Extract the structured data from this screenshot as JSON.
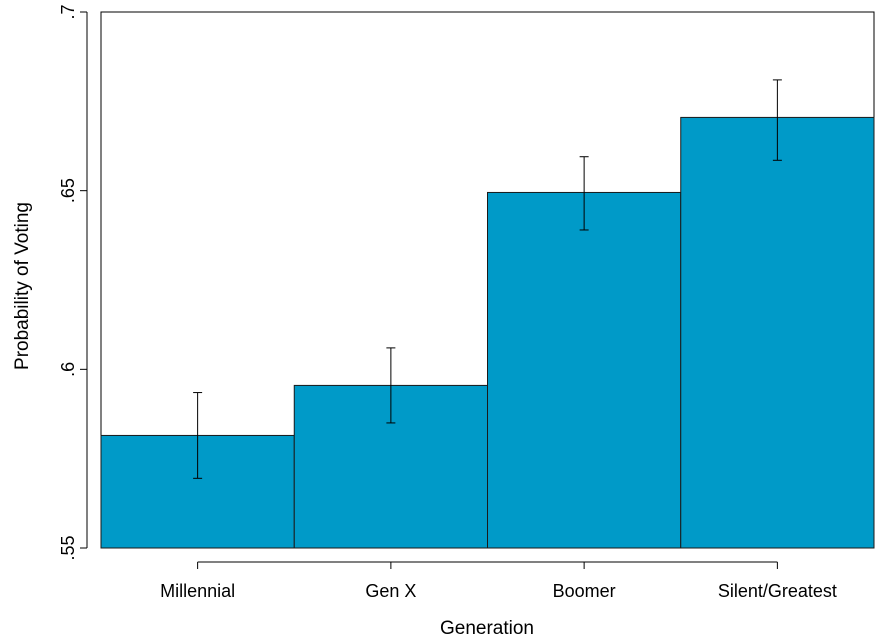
{
  "chart_data": {
    "type": "bar",
    "categories": [
      "Millennial",
      "Gen X",
      "Boomer",
      "Silent/Greatest"
    ],
    "values": [
      0.5815,
      0.5955,
      0.6495,
      0.6705
    ],
    "error_bars": {
      "lower": [
        0.5695,
        0.585,
        0.639,
        0.6585
      ],
      "upper": [
        0.5935,
        0.606,
        0.6595,
        0.681
      ]
    },
    "title": "",
    "xlabel": "Generation",
    "ylabel": "Probability of Voting",
    "ylim": [
      0.55,
      0.7
    ],
    "y_ticks": [
      0.55,
      0.6,
      0.65,
      0.7
    ],
    "y_tick_labels": [
      ".55",
      ".6",
      ".65",
      ".7"
    ],
    "grid": false,
    "legend": "none",
    "bar_color": "#009ac8",
    "edge_color": "#1a1a1a"
  }
}
